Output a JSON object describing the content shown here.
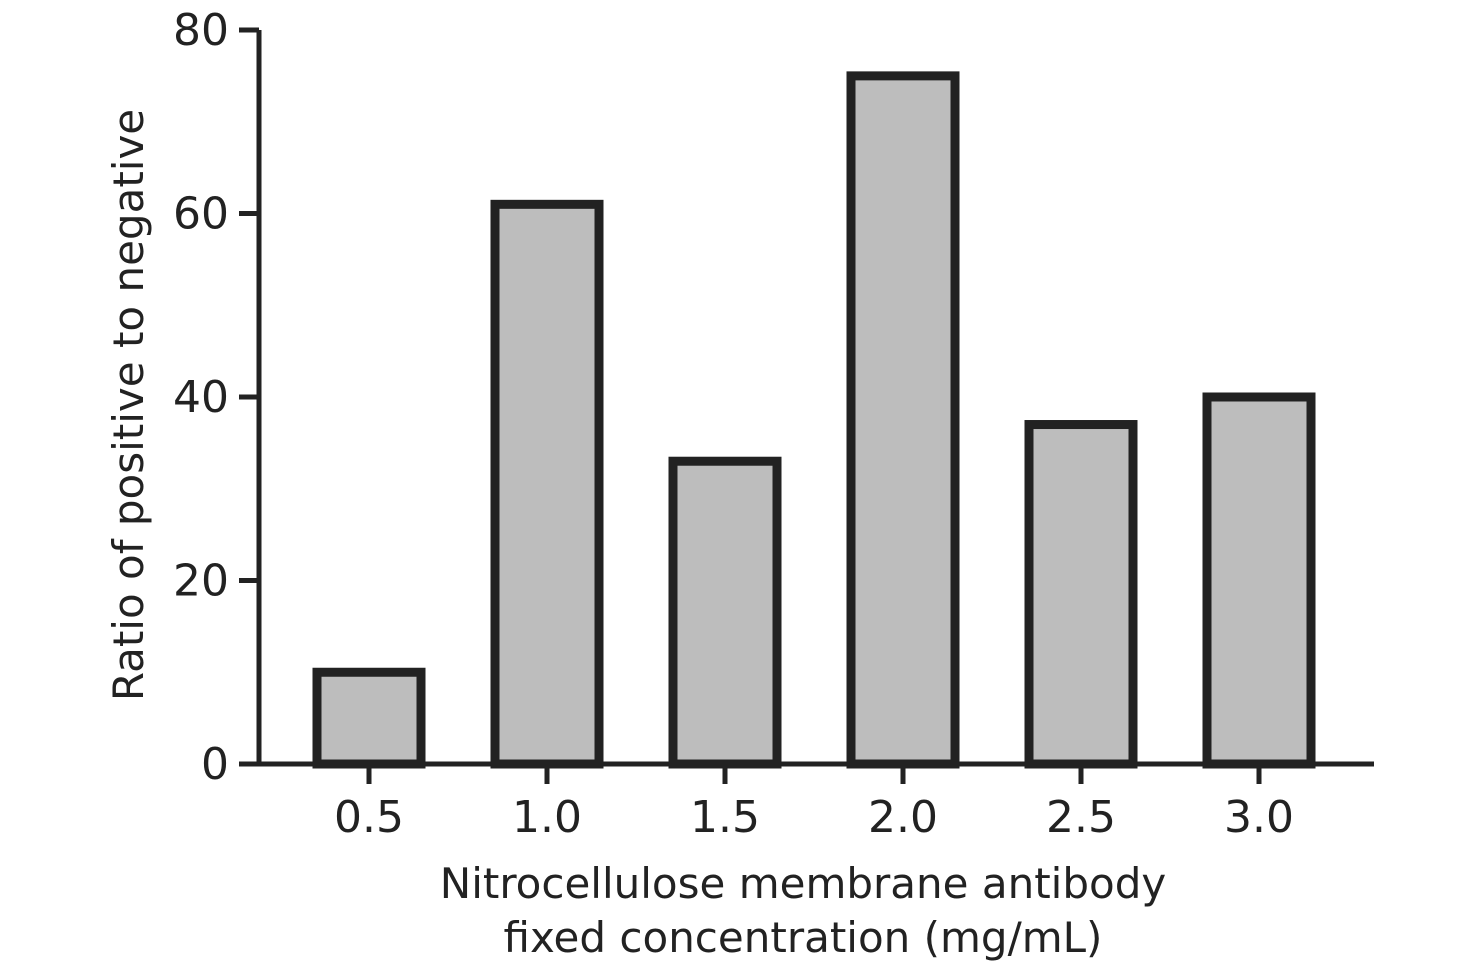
{
  "chart_data": {
    "type": "bar",
    "categories": [
      "0.5",
      "1.0",
      "1.5",
      "2.0",
      "2.5",
      "3.0"
    ],
    "values": [
      10,
      61,
      33,
      75,
      37,
      40
    ],
    "title": "",
    "xlabel": [
      "Nitrocellulose membrane antibody",
      "fixed concentration (mg/mL)"
    ],
    "ylabel": "Ratio of positive to negative",
    "ylim": [
      0,
      80
    ],
    "yticks": [
      "0",
      "20",
      "40",
      "60",
      "80"
    ],
    "grid": false,
    "legend": "none",
    "colors": {
      "bar_fill": "#bdbdbd",
      "bar_stroke": "#222222",
      "axis": "#222222"
    }
  }
}
